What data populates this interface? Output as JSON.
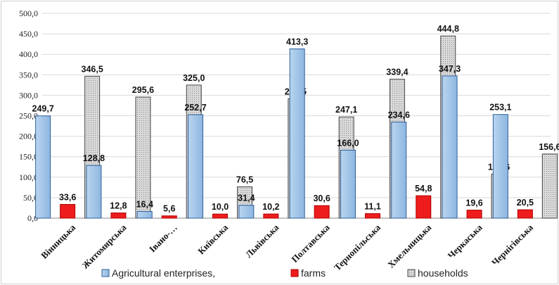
{
  "chart_data": {
    "type": "bar",
    "categories": [
      "Вінницька",
      "Житомирська",
      "Івано-…",
      "Київська",
      "Львівська",
      "Полтавська",
      "Тернопільська",
      "Хмельницька",
      "Черкаська",
      "Чернігівська"
    ],
    "series": [
      {
        "name": "Agricultural enterprises,",
        "values": [
          249.7,
          128.8,
          16.4,
          252.7,
          31.4,
          413.3,
          166.0,
          234.6,
          347.3,
          253.1
        ],
        "labels": [
          "249,7",
          "128,8",
          "16,4",
          "252,7",
          "31,4",
          "413,3",
          "166,0",
          "234,6",
          "347,3",
          "253,1"
        ],
        "color": "#9dc3e6",
        "stroke": "#2e5f9a"
      },
      {
        "name": "farms",
        "values": [
          33.6,
          12.8,
          5.6,
          10.0,
          10.2,
          30.6,
          11.1,
          54.8,
          19.6,
          20.5
        ],
        "labels": [
          "33,6",
          "12,8",
          "5,6",
          "10,0",
          "10,2",
          "30,6",
          "11,1",
          "54,8",
          "19,6",
          "20,5"
        ],
        "color": "#ee1c1c",
        "stroke": "#b00000"
      },
      {
        "name": "households",
        "values": [
          346.5,
          295.6,
          325.0,
          76.5,
          291.5,
          247.1,
          339.4,
          444.8,
          107.6,
          156.6
        ],
        "labels": [
          "346,5",
          "295,6",
          "325,0",
          "76,5",
          "291,5",
          "247,1",
          "339,4",
          "444,8",
          "107,6",
          "156,6"
        ],
        "color": "#c8c8c8",
        "stroke": "#444444"
      }
    ],
    "yticks": [
      "0,0",
      "50,0",
      "100,0",
      "150,0",
      "200,0",
      "250,0",
      "300,0",
      "350,0",
      "400,0",
      "450,0",
      "500,0"
    ],
    "ylim": [
      0,
      500
    ],
    "title": "",
    "xlabel": "",
    "ylabel": "",
    "grid": true,
    "legend": "bottom"
  }
}
